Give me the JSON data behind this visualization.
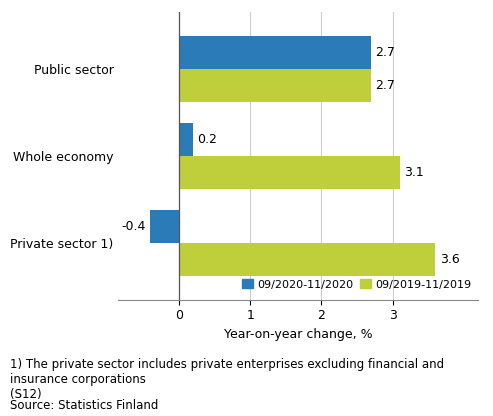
{
  "categories": [
    "Private sector 1)",
    "Whole economy",
    "Public sector"
  ],
  "series": [
    {
      "label": "09/2020-11/2020",
      "color": "#2B7BB9",
      "values": [
        -0.4,
        0.2,
        2.7
      ]
    },
    {
      "label": "09/2019-11/2019",
      "color": "#BFCE3B",
      "values": [
        3.6,
        3.1,
        2.7
      ]
    }
  ],
  "xlabel": "Year-on-year change, %",
  "xlim": [
    -0.85,
    4.2
  ],
  "xticks": [
    0,
    1,
    2,
    3
  ],
  "footnote": "1) The private sector includes private enterprises excluding financial and insurance corporations\n(S12)",
  "source": "Source: Statistics Finland",
  "bar_height": 0.38,
  "background_color": "#ffffff",
  "grid_color": "#cccccc",
  "label_fontsize": 9,
  "tick_fontsize": 9,
  "annotation_fontsize": 9,
  "footnote_fontsize": 8.5
}
